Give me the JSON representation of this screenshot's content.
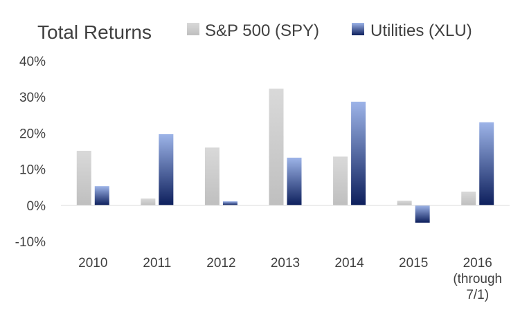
{
  "chart_data": {
    "type": "bar",
    "title": "Total Returns",
    "categories": [
      "2010",
      "2011",
      "2012",
      "2013",
      "2014",
      "2015",
      "2016\n(through\n7/1)"
    ],
    "series": [
      {
        "name": "S&P 500 (SPY)",
        "values": [
          15.1,
          1.9,
          16.0,
          32.3,
          13.5,
          1.3,
          3.8
        ],
        "color_top": "#d9d9d9",
        "color_bottom": "#bfbfbf"
      },
      {
        "name": "Utilities (XLU)",
        "values": [
          5.3,
          19.7,
          1.1,
          13.2,
          28.7,
          -4.8,
          23.0
        ],
        "color_top": "#9db4e8",
        "color_bottom": "#0d1f5c"
      }
    ],
    "yticks": [
      "40%",
      "30%",
      "20%",
      "10%",
      "0%",
      "-10%"
    ],
    "ytick_values": [
      40,
      30,
      20,
      10,
      0,
      -10
    ],
    "ylim": [
      -10,
      40
    ],
    "xlabel": "",
    "ylabel": "",
    "grid": false,
    "legend_position": "top-right"
  }
}
